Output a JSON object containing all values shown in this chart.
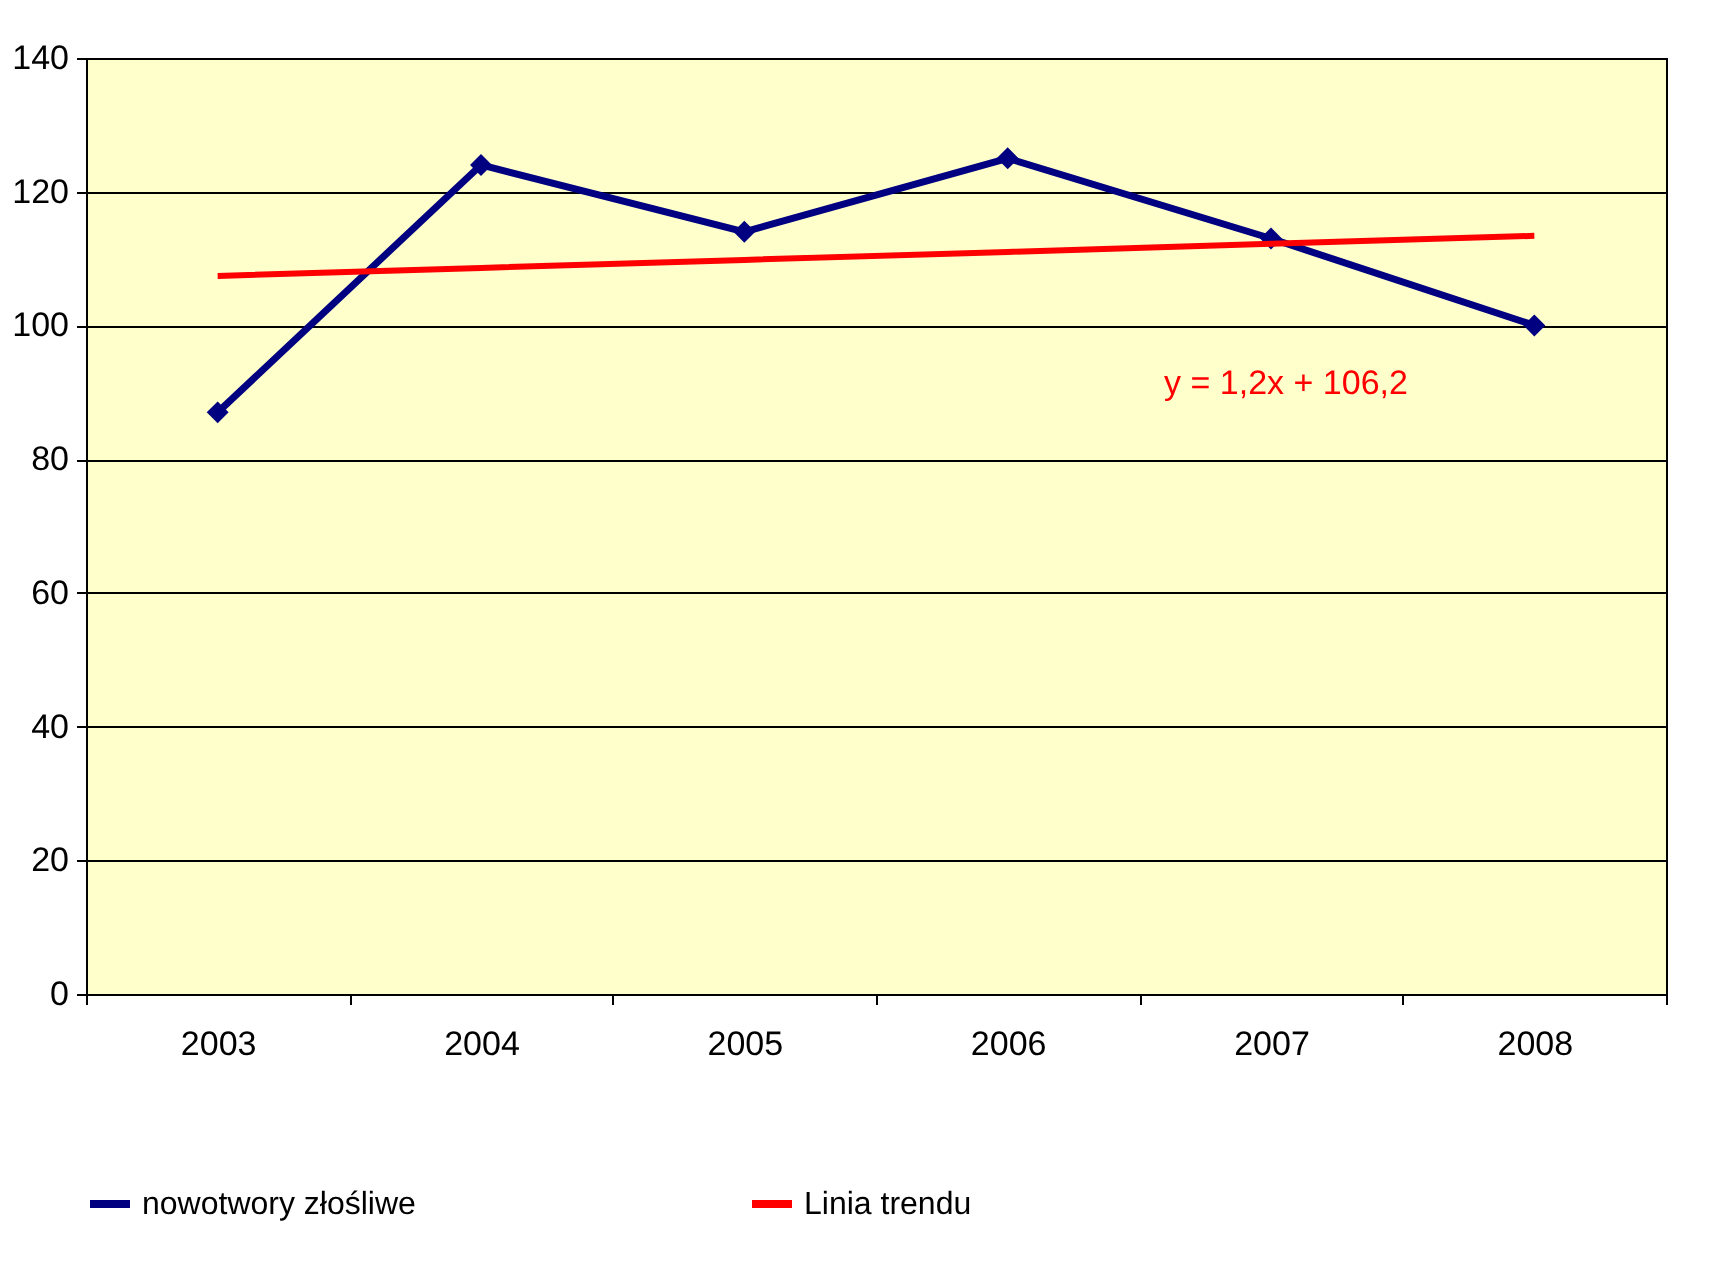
{
  "chart_data": {
    "type": "line",
    "categories": [
      "2003",
      "2004",
      "2005",
      "2006",
      "2007",
      "2008"
    ],
    "series": [
      {
        "name": "nowotwory złośliwe",
        "color": "#000080",
        "values": [
          87,
          124,
          114,
          125,
          113,
          100
        ],
        "marker": "diamond"
      },
      {
        "name": "Linia trendu",
        "color": "#ff0000",
        "values": [
          107.4,
          108.6,
          109.8,
          111.0,
          112.2,
          113.4
        ],
        "type": "line",
        "marker": "none"
      }
    ],
    "ylim": [
      0,
      140
    ],
    "yticks": [
      0,
      20,
      40,
      60,
      80,
      100,
      120,
      140
    ],
    "grid": "y",
    "legend": "bottom",
    "annotations": [
      "y = 1,2x + 106,2"
    ]
  }
}
